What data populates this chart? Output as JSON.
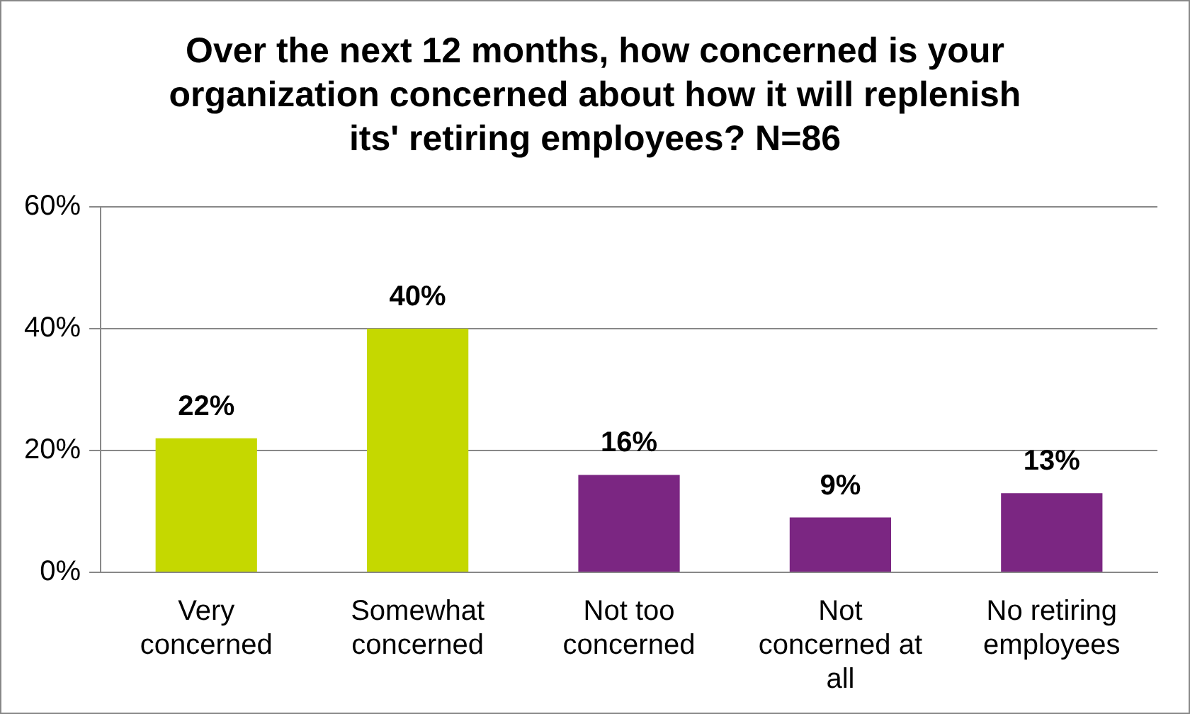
{
  "chart_data": {
    "type": "bar",
    "title": "Over the next 12 months, how concerned is your organization concerned about how it will replenish its' retiring employees? N=86",
    "categories": [
      "Very concerned",
      "Somewhat concerned",
      "Not too concerned",
      "Not concerned at all",
      "No retiring employees"
    ],
    "values": [
      22,
      40,
      16,
      9,
      13
    ],
    "colors": [
      "#c5d800",
      "#c5d800",
      "#7b2682",
      "#7b2682",
      "#7b2682"
    ],
    "value_labels": [
      "22%",
      "40%",
      "16%",
      "9%",
      "13%"
    ],
    "ylim": [
      0,
      60
    ],
    "yticks": [
      {
        "value": 0,
        "label": "0%"
      },
      {
        "value": 20,
        "label": "20%"
      },
      {
        "value": 40,
        "label": "40%"
      },
      {
        "value": 60,
        "label": "60%"
      }
    ],
    "grid": "y",
    "legend": false
  }
}
